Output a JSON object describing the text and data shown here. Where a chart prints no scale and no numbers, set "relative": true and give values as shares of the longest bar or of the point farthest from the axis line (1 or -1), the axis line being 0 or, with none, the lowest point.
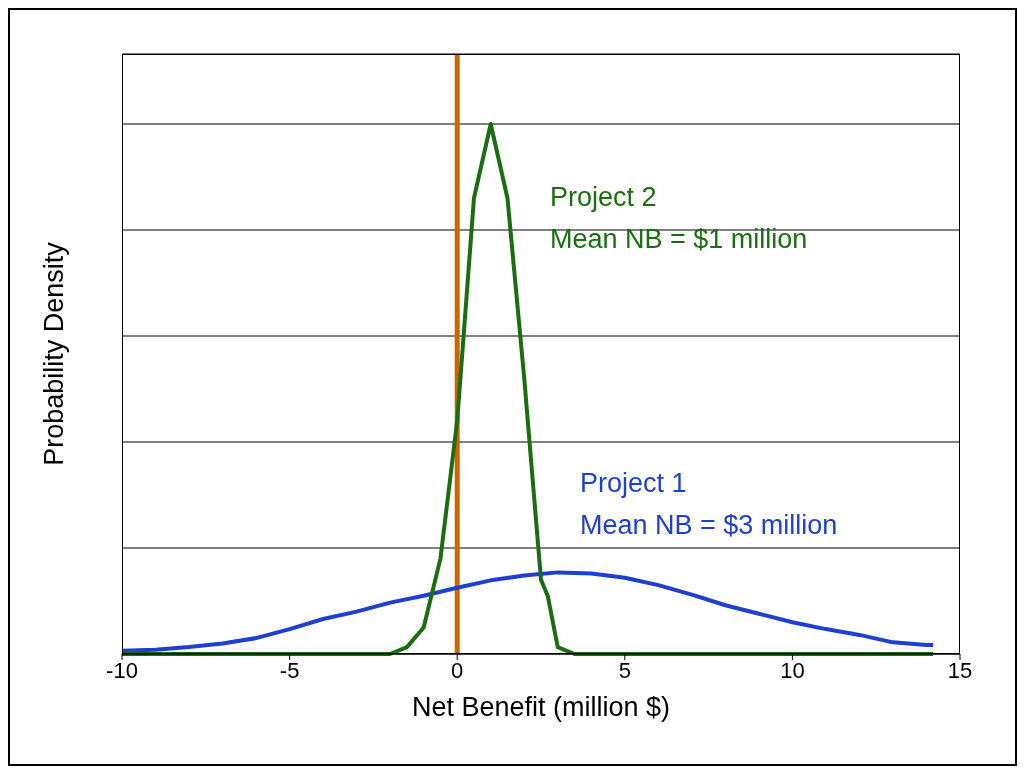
{
  "chart_data": {
    "type": "line",
    "xlabel": "Net Benefit (million $)",
    "ylabel": "Probability Density",
    "relative": true,
    "xlim": [
      -10,
      15
    ],
    "xticks": [
      -10,
      -5,
      0,
      5,
      10,
      15
    ],
    "grid": "y",
    "marker": "none",
    "line_style": "solid",
    "series": [
      {
        "name": "Project 1",
        "color": "#1f3fd0",
        "x": [
          -10,
          -9,
          -8,
          -7,
          -6,
          -5,
          -4,
          -3,
          -2,
          -1,
          0,
          1,
          2,
          3,
          4,
          5,
          6,
          7,
          8,
          9,
          10,
          11,
          12,
          13,
          14,
          14.2
        ],
        "values": [
          0.006,
          0.008,
          0.013,
          0.02,
          0.03,
          0.047,
          0.066,
          0.08,
          0.097,
          0.11,
          0.125,
          0.139,
          0.148,
          0.154,
          0.152,
          0.144,
          0.13,
          0.112,
          0.092,
          0.076,
          0.06,
          0.047,
          0.036,
          0.022,
          0.017,
          0.017
        ]
      },
      {
        "name": "Project 2",
        "color": "#1a6e10",
        "x": [
          -10,
          -5,
          -2,
          -1.5,
          -1,
          -0.5,
          0,
          0.5,
          1,
          1.5,
          2,
          2.5,
          2.7,
          3,
          3.5,
          5,
          10,
          14.2
        ],
        "values": [
          0,
          0,
          0,
          0.013,
          0.05,
          0.18,
          0.44,
          0.86,
          1,
          0.86,
          0.52,
          0.14,
          0.11,
          0.013,
          0,
          0,
          0,
          0
        ]
      }
    ],
    "annotations": [
      "Mean NB = $3 million",
      "Mean NB = $1 million"
    ],
    "ref_lines": [
      {
        "axis": "x",
        "value": 0,
        "color": "#cc6600"
      }
    ]
  }
}
